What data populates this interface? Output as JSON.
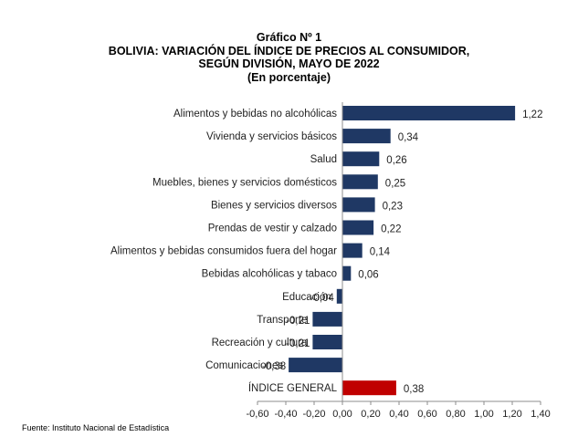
{
  "title_lines": [
    "Gráfico Nº 1",
    "BOLIVIA: VARIACIÓN DEL ÍNDICE DE PRECIOS AL CONSUMIDOR,",
    "SEGÚN DIVISIÓN, MAYO DE 2022",
    "(En porcentaje)"
  ],
  "source": "Fuente: Instituto Nacional de Estadística",
  "colors": {
    "bar": "#1f3864",
    "highlight": "#c00000"
  },
  "chart_data": {
    "type": "bar",
    "orientation": "horizontal",
    "categories": [
      "Alimentos y bebidas no alcohólicas",
      "Vivienda y servicios básicos",
      "Salud",
      "Muebles, bienes y servicios domésticos",
      "Bienes y servicios diversos",
      "Prendas de vestir y calzado",
      "Alimentos y bebidas consumidos fuera del hogar",
      "Bebidas alcohólicas y tabaco",
      "Educación",
      "Transporte",
      "Recreación y cultura",
      "Comunicaciones",
      "ÍNDICE GENERAL"
    ],
    "values": [
      1.22,
      0.34,
      0.26,
      0.25,
      0.23,
      0.22,
      0.14,
      0.06,
      -0.04,
      -0.21,
      -0.21,
      -0.38,
      0.38
    ],
    "value_labels": [
      "1,22",
      "0,34",
      "0,26",
      "0,25",
      "0,23",
      "0,22",
      "0,14",
      "0,06",
      "-0,04",
      "-0,21",
      "-0,21",
      "-0,38",
      "0,38"
    ],
    "highlight_category": "ÍNDICE GENERAL",
    "xlim": [
      -0.6,
      1.4
    ],
    "xticks": [
      -0.6,
      -0.4,
      -0.2,
      0.0,
      0.2,
      0.4,
      0.6,
      0.8,
      1.0,
      1.2,
      1.4
    ],
    "xtick_labels": [
      "-0,60",
      "-0,40",
      "-0,20",
      "0,00",
      "0,20",
      "0,40",
      "0,60",
      "0,80",
      "1,00",
      "1,20",
      "1,40"
    ],
    "grid": false,
    "legend": "none"
  }
}
